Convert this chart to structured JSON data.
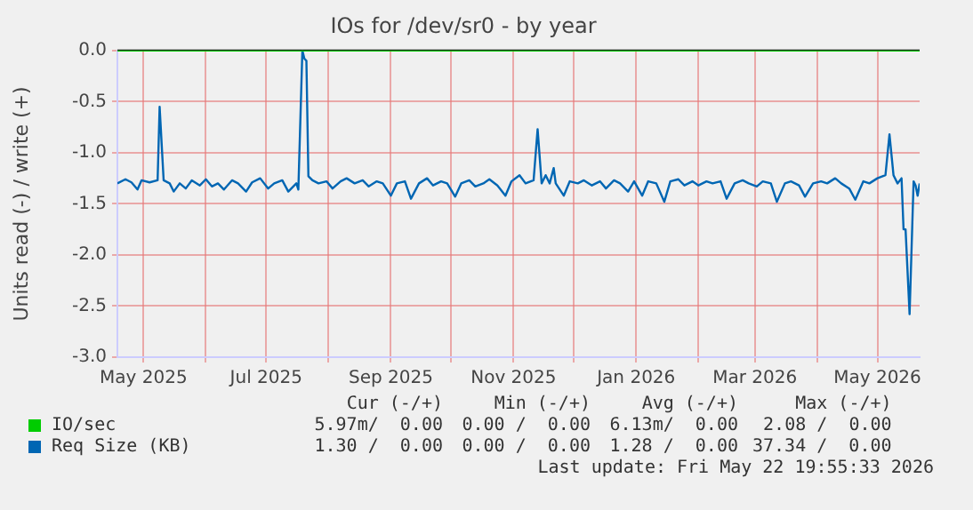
{
  "chart_data": {
    "type": "line",
    "title": "IOs for /dev/sr0 - by year",
    "ylabel": "Units read (-) / write (+)",
    "xlim": [
      "2025-04-18",
      "2026-05-22"
    ],
    "xticks": [
      {
        "value": "2025-05-01",
        "label": "May 2025"
      },
      {
        "value": "2025-06-01",
        "label": null
      },
      {
        "value": "2025-07-01",
        "label": "Jul 2025"
      },
      {
        "value": "2025-08-01",
        "label": null
      },
      {
        "value": "2025-09-01",
        "label": "Sep 2025"
      },
      {
        "value": "2025-10-01",
        "label": null
      },
      {
        "value": "2025-11-01",
        "label": "Nov 2025"
      },
      {
        "value": "2025-12-01",
        "label": null
      },
      {
        "value": "2026-01-01",
        "label": "Jan 2026"
      },
      {
        "value": "2026-02-01",
        "label": null
      },
      {
        "value": "2026-03-01",
        "label": "Mar 2026"
      },
      {
        "value": "2026-04-01",
        "label": null
      },
      {
        "value": "2026-05-01",
        "label": "May 2026"
      }
    ],
    "ylim": [
      -3,
      0
    ],
    "yticks": [
      {
        "value": 0,
        "label": "0.0"
      },
      {
        "value": -0.5,
        "label": "-0.5"
      },
      {
        "value": -1,
        "label": "-1.0"
      },
      {
        "value": -1.5,
        "label": "-1.5"
      },
      {
        "value": -2,
        "label": "-2.0"
      },
      {
        "value": -2.5,
        "label": "-2.5"
      },
      {
        "value": -3,
        "label": "-3.0"
      }
    ],
    "grid": true,
    "legend": "bottom",
    "marker": "none",
    "line_style": "solid",
    "ref_lines": [
      {
        "axis": "y",
        "value": 0,
        "color": "#000000"
      }
    ],
    "series": [
      {
        "name": "IO/sec",
        "color": "#00cc00",
        "x": [
          "2025-04-18",
          "2026-05-22"
        ],
        "values": [
          0,
          0
        ]
      },
      {
        "name": "Req Size (KB)",
        "color": "#0066b3",
        "x": [
          "2025-04-18",
          "2025-04-22",
          "2025-04-25",
          "2025-04-28",
          "2025-04-30",
          "2025-05-04",
          "2025-05-08",
          "2025-05-09",
          "2025-05-11",
          "2025-05-14",
          "2025-05-16",
          "2025-05-19",
          "2025-05-22",
          "2025-05-25",
          "2025-05-29",
          "2025-06-01",
          "2025-06-04",
          "2025-06-07",
          "2025-06-10",
          "2025-06-14",
          "2025-06-17",
          "2025-06-21",
          "2025-06-24",
          "2025-06-28",
          "2025-07-02",
          "2025-07-05",
          "2025-07-09",
          "2025-07-12",
          "2025-07-16",
          "2025-07-17",
          "2025-07-19",
          "2025-07-20",
          "2025-07-21",
          "2025-07-22",
          "2025-07-24",
          "2025-07-27",
          "2025-07-31",
          "2025-08-03",
          "2025-08-07",
          "2025-08-10",
          "2025-08-14",
          "2025-08-18",
          "2025-08-21",
          "2025-08-25",
          "2025-08-28",
          "2025-09-01",
          "2025-09-04",
          "2025-09-08",
          "2025-09-11",
          "2025-09-15",
          "2025-09-19",
          "2025-09-22",
          "2025-09-26",
          "2025-09-29",
          "2025-10-03",
          "2025-10-06",
          "2025-10-10",
          "2025-10-13",
          "2025-10-17",
          "2025-10-20",
          "2025-10-24",
          "2025-10-28",
          "2025-10-31",
          "2025-11-04",
          "2025-11-07",
          "2025-11-11",
          "2025-11-13",
          "2025-11-15",
          "2025-11-17",
          "2025-11-19",
          "2025-11-21",
          "2025-11-22",
          "2025-11-26",
          "2025-11-29",
          "2025-12-03",
          "2025-12-06",
          "2025-12-10",
          "2025-12-14",
          "2025-12-17",
          "2025-12-21",
          "2025-12-24",
          "2025-12-28",
          "2025-12-31",
          "2026-01-04",
          "2026-01-07",
          "2026-01-11",
          "2026-01-15",
          "2026-01-18",
          "2026-01-22",
          "2026-01-25",
          "2026-01-29",
          "2026-02-01",
          "2026-02-05",
          "2026-02-08",
          "2026-02-12",
          "2026-02-15",
          "2026-02-19",
          "2026-02-23",
          "2026-02-26",
          "2026-03-02",
          "2026-03-05",
          "2026-03-09",
          "2026-03-12",
          "2026-03-16",
          "2026-03-19",
          "2026-03-23",
          "2026-03-26",
          "2026-03-30",
          "2026-04-03",
          "2026-04-06",
          "2026-04-10",
          "2026-04-13",
          "2026-04-17",
          "2026-04-20",
          "2026-04-24",
          "2026-04-27",
          "2026-05-01",
          "2026-05-05",
          "2026-05-07",
          "2026-05-09",
          "2026-05-11",
          "2026-05-13",
          "2026-05-14",
          "2026-05-15",
          "2026-05-17",
          "2026-05-19",
          "2026-05-20",
          "2026-05-21",
          "2026-05-22"
        ],
        "values": [
          -1.3,
          -1.26,
          -1.29,
          -1.36,
          -1.27,
          -1.29,
          -1.27,
          -0.55,
          -1.27,
          -1.3,
          -1.38,
          -1.3,
          -1.35,
          -1.27,
          -1.32,
          -1.26,
          -1.33,
          -1.3,
          -1.36,
          -1.27,
          -1.3,
          -1.38,
          -1.29,
          -1.25,
          -1.35,
          -1.3,
          -1.27,
          -1.38,
          -1.3,
          -1.36,
          0.0,
          -0.08,
          -0.1,
          -1.23,
          -1.27,
          -1.3,
          -1.28,
          -1.35,
          -1.28,
          -1.25,
          -1.3,
          -1.27,
          -1.33,
          -1.28,
          -1.3,
          -1.42,
          -1.3,
          -1.28,
          -1.45,
          -1.3,
          -1.25,
          -1.32,
          -1.28,
          -1.3,
          -1.43,
          -1.3,
          -1.27,
          -1.33,
          -1.3,
          -1.26,
          -1.32,
          -1.42,
          -1.28,
          -1.22,
          -1.3,
          -1.27,
          -0.77,
          -1.3,
          -1.22,
          -1.3,
          -1.15,
          -1.3,
          -1.42,
          -1.28,
          -1.3,
          -1.27,
          -1.32,
          -1.28,
          -1.35,
          -1.27,
          -1.3,
          -1.38,
          -1.28,
          -1.42,
          -1.28,
          -1.3,
          -1.48,
          -1.28,
          -1.26,
          -1.32,
          -1.28,
          -1.32,
          -1.28,
          -1.3,
          -1.28,
          -1.45,
          -1.3,
          -1.27,
          -1.3,
          -1.33,
          -1.28,
          -1.3,
          -1.48,
          -1.3,
          -1.28,
          -1.32,
          -1.43,
          -1.3,
          -1.28,
          -1.3,
          -1.25,
          -1.3,
          -1.35,
          -1.46,
          -1.28,
          -1.3,
          -1.25,
          -1.22,
          -0.82,
          -1.22,
          -1.3,
          -1.25,
          -1.75,
          -1.75,
          -2.58,
          -1.28,
          -1.32,
          -1.42,
          -1.3
        ]
      }
    ],
    "annotations": [
      "Cur (-/+)",
      "Min (-/+)",
      "Avg (-/+)",
      "Max (-/+)",
      "5.97m/  0.00",
      "0.00 /  0.00",
      "6.13m/  0.00",
      "2.08 /  0.00",
      "1.30 /  0.00",
      "0.00 /  0.00",
      "1.28 /  0.00",
      "37.34 /  0.00",
      "Last update: Fri May 22 19:55:33 2026"
    ]
  }
}
